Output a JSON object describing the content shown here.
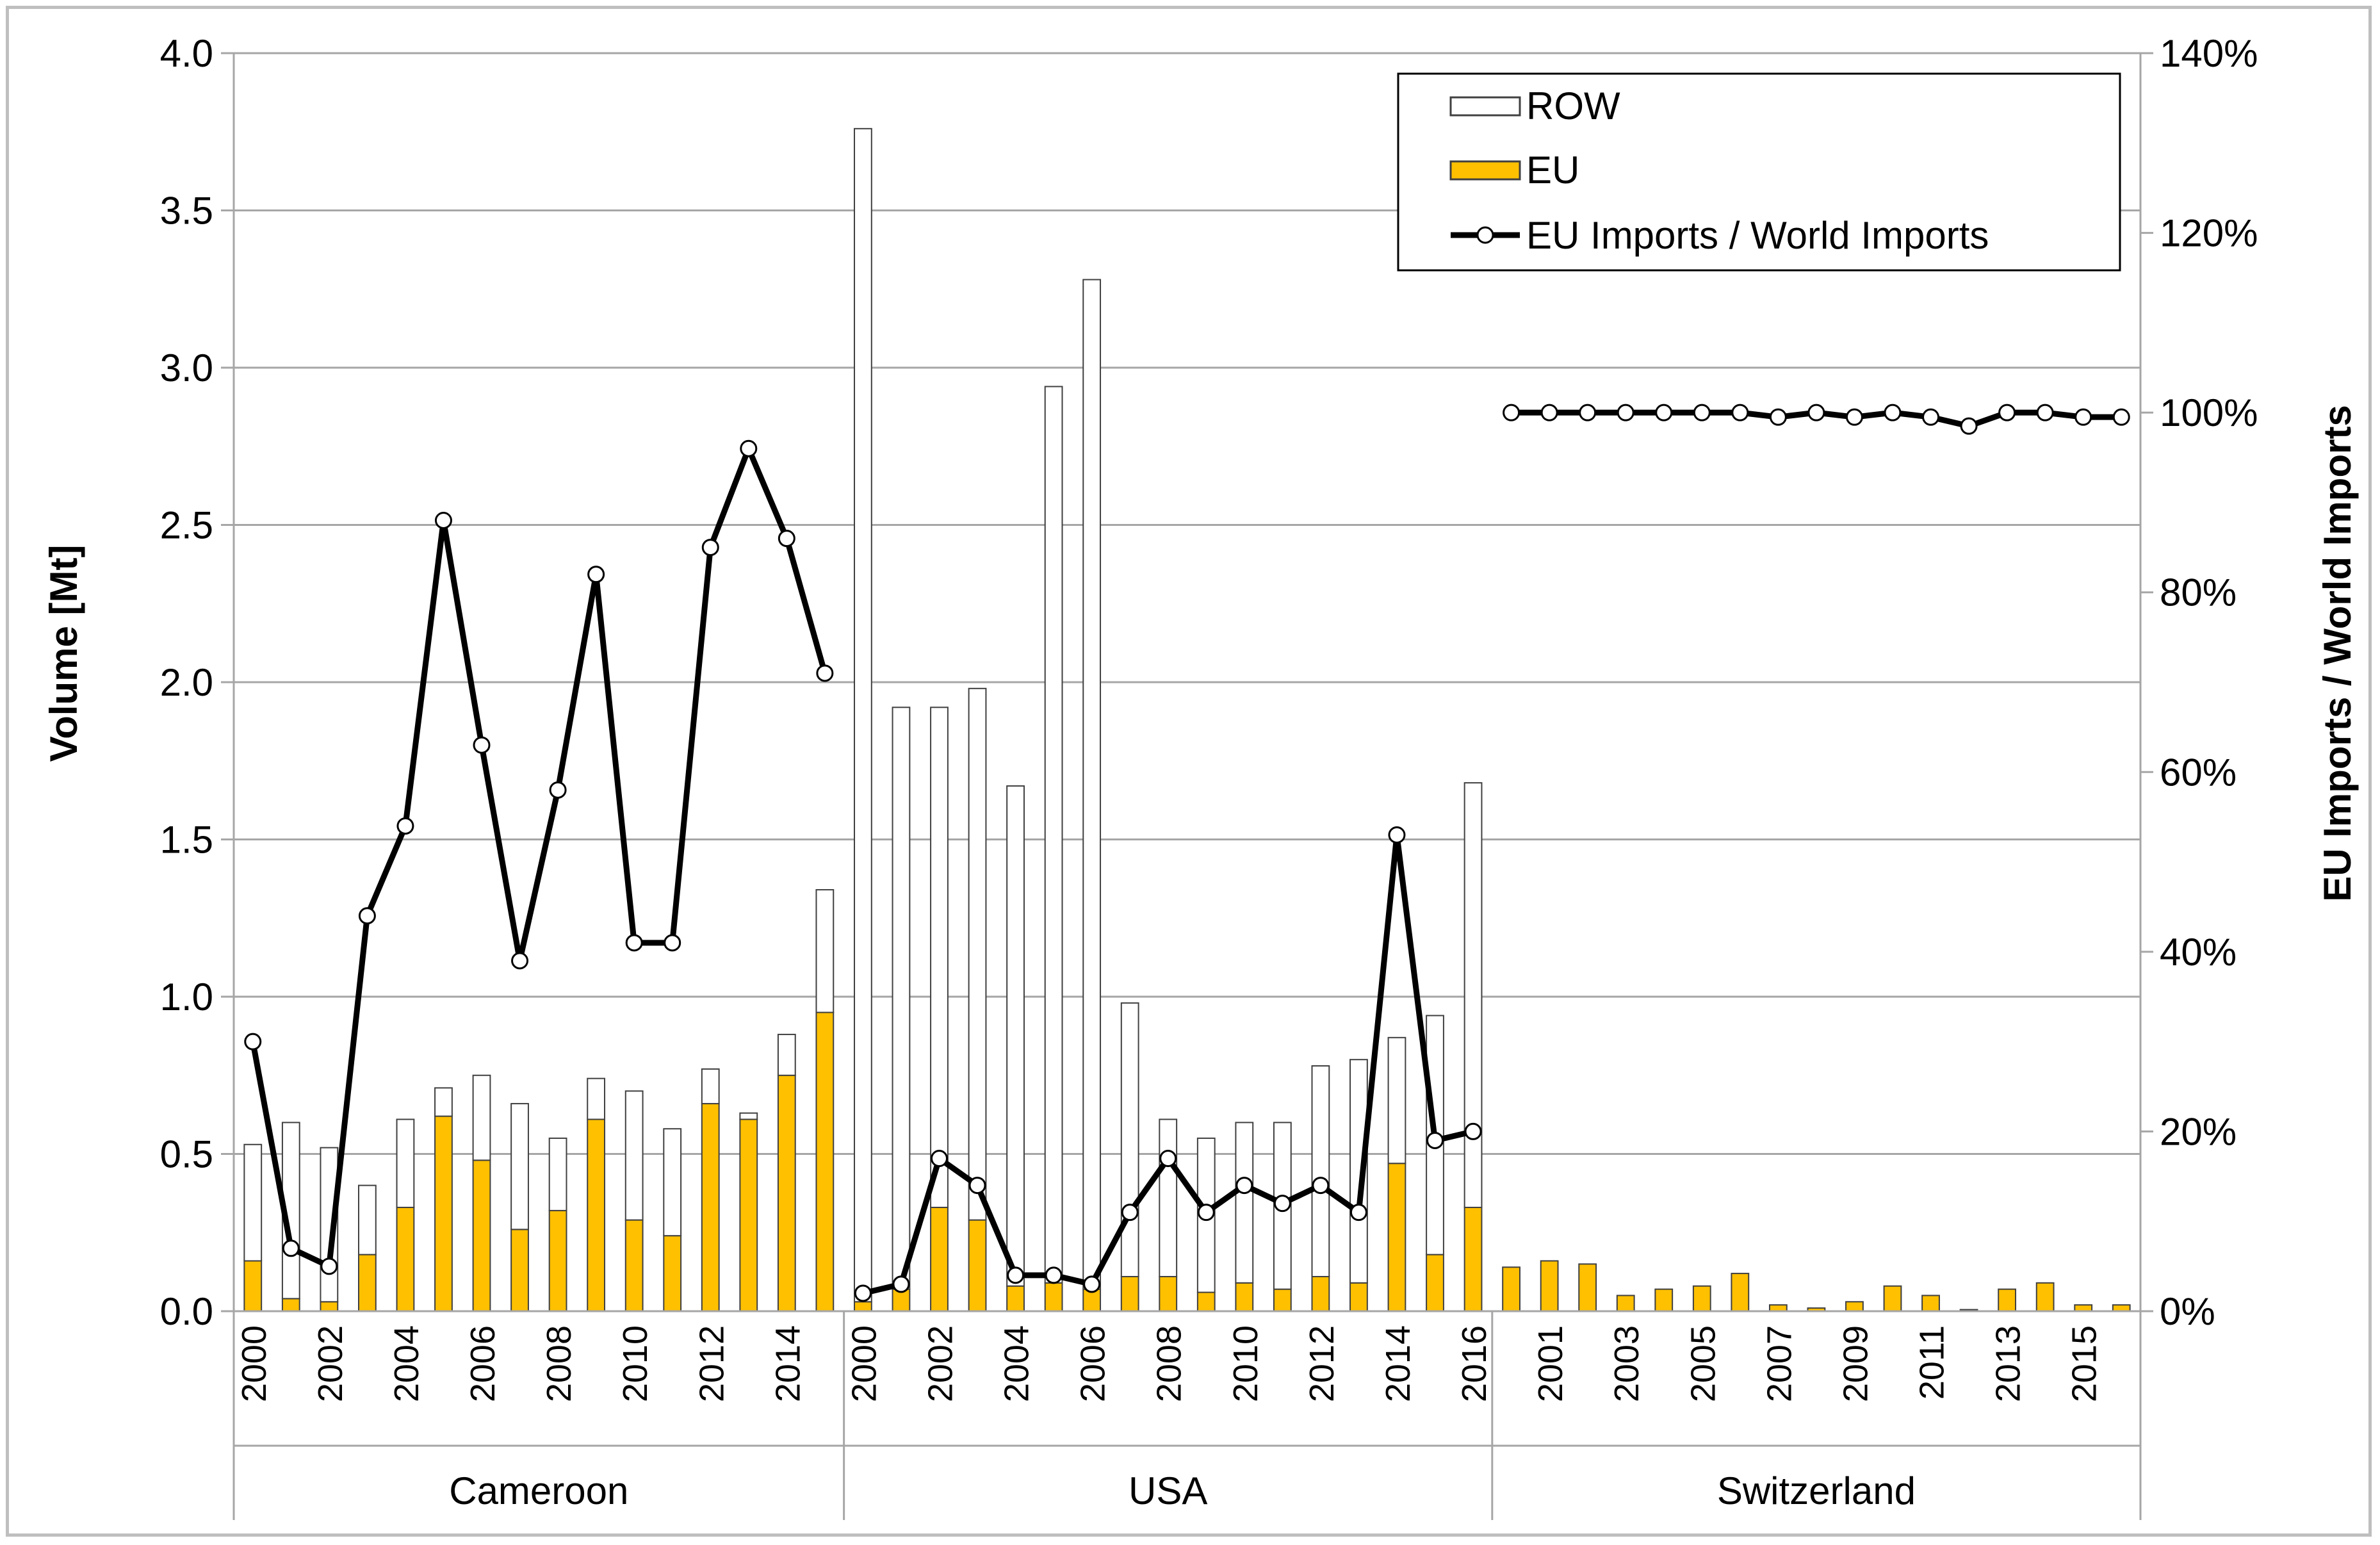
{
  "chart_data": {
    "type": "bar",
    "stacked": true,
    "grid": true,
    "legend_position": "top-right",
    "ylabel": "Volume [Mt]",
    "y2label": "EU Imports / World Imports",
    "ylim": [
      0,
      4.0
    ],
    "y2lim": [
      0,
      1.4
    ],
    "yticks": [
      "0.0",
      "0.5",
      "1.0",
      "1.5",
      "2.0",
      "2.5",
      "3.0",
      "3.5",
      "4.0"
    ],
    "y2ticks": [
      "0%",
      "20%",
      "40%",
      "60%",
      "80%",
      "100%",
      "120%",
      "140%"
    ],
    "legend": {
      "row": "ROW",
      "eu": "EU",
      "ratio": "EU Imports / World Imports"
    },
    "colors": {
      "eu": "#ffc000",
      "row": "#ffffff",
      "bar_outline": "#404040",
      "line": "#000000",
      "grid": "#a6a6a6"
    },
    "groups": [
      {
        "name": "Cameroon",
        "years": [
          2000,
          2001,
          2002,
          2003,
          2004,
          2005,
          2006,
          2007,
          2008,
          2009,
          2010,
          2011,
          2012,
          2013,
          2014,
          2015
        ],
        "x_labels": [
          "2000",
          "",
          "2002",
          "",
          "2004",
          "",
          "2006",
          "",
          "2008",
          "",
          "2010",
          "",
          "2012",
          "",
          "2014",
          ""
        ],
        "eu": [
          0.16,
          0.04,
          0.03,
          0.18,
          0.33,
          0.62,
          0.48,
          0.26,
          0.32,
          0.61,
          0.29,
          0.24,
          0.66,
          0.61,
          0.75,
          0.95
        ],
        "row": [
          0.37,
          0.56,
          0.49,
          0.22,
          0.28,
          0.09,
          0.27,
          0.4,
          0.23,
          0.13,
          0.41,
          0.34,
          0.11,
          0.02,
          0.13,
          0.39
        ],
        "ratio": [
          0.3,
          0.07,
          0.05,
          0.44,
          0.54,
          0.88,
          0.63,
          0.39,
          0.58,
          0.82,
          0.41,
          0.41,
          0.85,
          0.96,
          0.86,
          0.71
        ]
      },
      {
        "name": "USA",
        "years": [
          2000,
          2001,
          2002,
          2003,
          2004,
          2005,
          2006,
          2007,
          2008,
          2009,
          2010,
          2011,
          2012,
          2013,
          2014,
          2015,
          2016
        ],
        "x_labels": [
          "2000",
          "",
          "2002",
          "",
          "2004",
          "",
          "2006",
          "",
          "2008",
          "",
          "2010",
          "",
          "2012",
          "",
          "2014",
          "",
          "2016"
        ],
        "eu": [
          0.03,
          0.07,
          0.33,
          0.29,
          0.08,
          0.09,
          0.07,
          0.11,
          0.11,
          0.06,
          0.09,
          0.07,
          0.11,
          0.09,
          0.47,
          0.18,
          0.33
        ],
        "row": [
          3.73,
          1.85,
          1.59,
          1.69,
          1.59,
          2.85,
          3.21,
          0.87,
          0.5,
          0.49,
          0.51,
          0.53,
          0.67,
          0.71,
          0.4,
          0.76,
          1.35
        ],
        "ratio": [
          0.02,
          0.03,
          0.17,
          0.14,
          0.04,
          0.04,
          0.03,
          0.11,
          0.17,
          0.11,
          0.14,
          0.12,
          0.14,
          0.11,
          0.53,
          0.19,
          0.2
        ]
      },
      {
        "name": "Switzerland",
        "years": [
          2000,
          2001,
          2002,
          2003,
          2004,
          2005,
          2006,
          2007,
          2008,
          2009,
          2010,
          2011,
          2012,
          2013,
          2014,
          2015,
          2016
        ],
        "x_labels": [
          "",
          "2001",
          "",
          "2003",
          "",
          "2005",
          "",
          "2007",
          "",
          "2009",
          "",
          "2011",
          "",
          "2013",
          "",
          "2015",
          ""
        ],
        "eu": [
          0.14,
          0.16,
          0.15,
          0.05,
          0.07,
          0.08,
          0.12,
          0.02,
          0.01,
          0.03,
          0.08,
          0.05,
          0.005,
          0.07,
          0.09,
          0.02,
          0.02
        ],
        "row": [
          0,
          0,
          0,
          0,
          0,
          0,
          0,
          0,
          0,
          0,
          0,
          0,
          0,
          0,
          0,
          0,
          0
        ],
        "ratio": [
          1.0,
          1.0,
          1.0,
          1.0,
          1.0,
          1.0,
          1.0,
          0.995,
          1.0,
          0.995,
          1.0,
          0.995,
          0.985,
          1.0,
          1.0,
          0.995,
          0.995
        ]
      }
    ]
  }
}
